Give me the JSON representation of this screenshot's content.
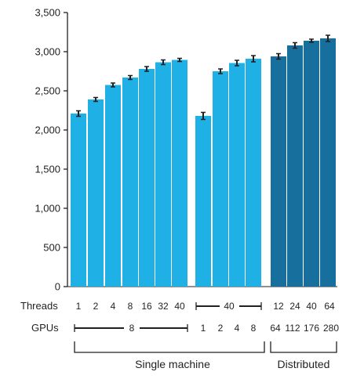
{
  "chart_data": {
    "type": "bar",
    "ylim": [
      0,
      3500
    ],
    "yticks": [
      0,
      500,
      1000,
      1500,
      2000,
      2500,
      3000,
      3500
    ],
    "ytick_labels": [
      "0",
      "500",
      "1,000",
      "1,500",
      "2,000",
      "2,500",
      "3,000",
      "3,500"
    ],
    "grid": false,
    "colors": {
      "single_machine": "#1fb1e6",
      "distributed": "#176f9e",
      "error": "#231f20"
    },
    "bars": [
      {
        "section": "single_machine",
        "threads": "1",
        "gpus": "8",
        "value": 2210,
        "err": 35
      },
      {
        "section": "single_machine",
        "threads": "2",
        "gpus": "8",
        "value": 2390,
        "err": 25
      },
      {
        "section": "single_machine",
        "threads": "4",
        "gpus": "8",
        "value": 2575,
        "err": 25
      },
      {
        "section": "single_machine",
        "threads": "8",
        "gpus": "8",
        "value": 2670,
        "err": 25
      },
      {
        "section": "single_machine",
        "threads": "16",
        "gpus": "8",
        "value": 2780,
        "err": 30
      },
      {
        "section": "single_machine",
        "threads": "32",
        "gpus": "8",
        "value": 2865,
        "err": 30
      },
      {
        "section": "single_machine",
        "threads": "40",
        "gpus": "8",
        "value": 2895,
        "err": 20
      },
      {
        "section": "single_machine",
        "threads": "40",
        "gpus": "1",
        "value": 2180,
        "err": 45
      },
      {
        "section": "single_machine",
        "threads": "40",
        "gpus": "2",
        "value": 2750,
        "err": 30
      },
      {
        "section": "single_machine",
        "threads": "40",
        "gpus": "4",
        "value": 2855,
        "err": 35
      },
      {
        "section": "single_machine",
        "threads": "40",
        "gpus": "8",
        "value": 2910,
        "err": 40
      },
      {
        "section": "distributed",
        "threads": "12",
        "gpus": "64",
        "value": 2940,
        "err": 35
      },
      {
        "section": "distributed",
        "threads": "24",
        "gpus": "112",
        "value": 3080,
        "err": 35
      },
      {
        "section": "distributed",
        "threads": "40",
        "gpus": "176",
        "value": 3140,
        "err": 20
      },
      {
        "section": "distributed",
        "threads": "64",
        "gpus": "280",
        "value": 3170,
        "err": 40
      }
    ],
    "row_labels": {
      "threads": "Threads",
      "gpus": "GPUs"
    },
    "threads_row": [
      "1",
      "2",
      "4",
      "8",
      "16",
      "32",
      "40",
      "40",
      "12",
      "24",
      "40",
      "64"
    ],
    "gpus_row": [
      "8",
      "1",
      "2",
      "4",
      "8",
      "64",
      "112",
      "176",
      "280"
    ],
    "groups": {
      "single_machine": "Single machine",
      "distributed": "Distributed"
    }
  }
}
